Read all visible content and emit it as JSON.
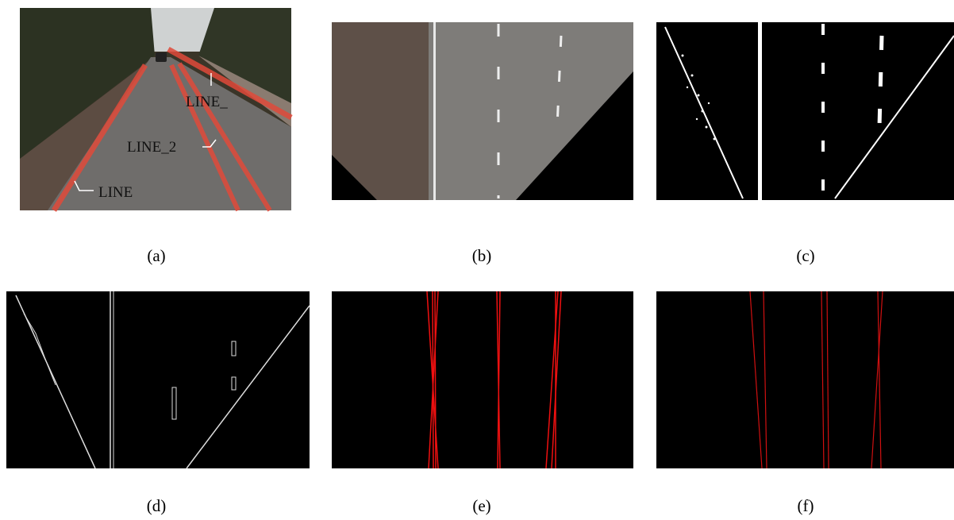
{
  "panels": [
    {
      "label": "(a)",
      "annotations": [
        "LINE_",
        "LINE_2",
        "LINE"
      ]
    },
    {
      "label": "(b)"
    },
    {
      "label": "(c)"
    },
    {
      "label": "(d)"
    },
    {
      "label": "(e)"
    },
    {
      "label": "(f)"
    }
  ]
}
